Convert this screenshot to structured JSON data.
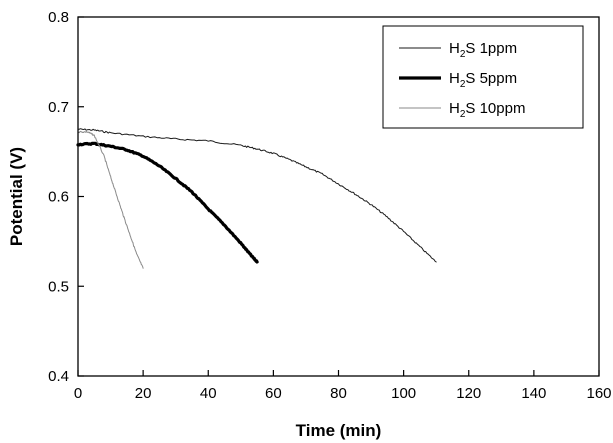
{
  "chart_data": {
    "type": "line",
    "xlabel": "Time (min)",
    "ylabel": "Potential (V)",
    "xlim": [
      0,
      160
    ],
    "ylim": [
      0.4,
      0.8
    ],
    "xticks": [
      0,
      20,
      40,
      60,
      80,
      100,
      120,
      140,
      160
    ],
    "yticks": [
      0.4,
      0.5,
      0.6,
      0.7,
      0.8
    ],
    "xtick_labels": [
      "0",
      "20",
      "40",
      "60",
      "80",
      "100",
      "120",
      "140",
      "160"
    ],
    "ytick_labels": [
      "0.4",
      "0.5",
      "0.6",
      "0.7",
      "0.8"
    ],
    "grid": false,
    "legend_position": "top-right",
    "series": [
      {
        "name": "H2S 1ppm",
        "legend": {
          "pre": "H",
          "sub": "2",
          "post": "S 1ppm"
        },
        "color": "#1a1a1a",
        "line_weight": "thin",
        "x": [
          0,
          5,
          10,
          20,
          30,
          40,
          50,
          55,
          60,
          65,
          70,
          75,
          80,
          85,
          90,
          95,
          100,
          105,
          110
        ],
        "y": [
          0.675,
          0.674,
          0.671,
          0.667,
          0.664,
          0.662,
          0.657,
          0.653,
          0.648,
          0.641,
          0.633,
          0.625,
          0.614,
          0.603,
          0.591,
          0.577,
          0.561,
          0.544,
          0.527
        ]
      },
      {
        "name": "H2S 5ppm",
        "legend": {
          "pre": "H",
          "sub": "2",
          "post": "S 5ppm"
        },
        "color": "#000000",
        "line_weight": "thick",
        "x": [
          0,
          5,
          10,
          15,
          20,
          25,
          30,
          35,
          40,
          45,
          50,
          53,
          55
        ],
        "y": [
          0.658,
          0.659,
          0.656,
          0.652,
          0.645,
          0.634,
          0.62,
          0.605,
          0.586,
          0.568,
          0.548,
          0.535,
          0.527
        ]
      },
      {
        "name": "H2S 10ppm",
        "legend": {
          "pre": "H",
          "sub": "2",
          "post": "S 10ppm"
        },
        "color": "#8a8a8a",
        "line_weight": "thin",
        "x": [
          0,
          3,
          5,
          8,
          10,
          12,
          14,
          16,
          18,
          20
        ],
        "y": [
          0.672,
          0.672,
          0.668,
          0.645,
          0.622,
          0.6,
          0.578,
          0.557,
          0.536,
          0.52
        ]
      }
    ]
  }
}
